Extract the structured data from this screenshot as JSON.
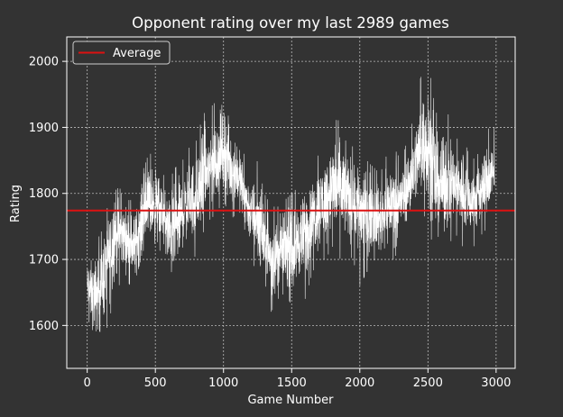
{
  "chart_data": {
    "type": "line",
    "title": "Opponent rating over my last 2989 games",
    "xlabel": "Game Number",
    "ylabel": "Rating",
    "xlim": [
      -150,
      3140
    ],
    "ylim": [
      1535,
      2037
    ],
    "xticks": [
      0,
      500,
      1000,
      1500,
      2000,
      2500,
      3000
    ],
    "yticks": [
      1600,
      1700,
      1800,
      1900,
      2000
    ],
    "grid": true,
    "legend": {
      "placement": "top-left",
      "entries": [
        "Average"
      ]
    },
    "colors": {
      "background": "#333333",
      "axes": "#ffffff",
      "series": "#ffffff",
      "average": "#dd1111",
      "grid": "#bbbbbb"
    },
    "series": [
      {
        "name": "Rating",
        "x_range": [
          0,
          2988
        ],
        "envelope": {
          "x": [
            0,
            50,
            100,
            150,
            200,
            250,
            300,
            350,
            400,
            450,
            500,
            550,
            600,
            650,
            700,
            750,
            800,
            850,
            900,
            950,
            1000,
            1050,
            1100,
            1150,
            1200,
            1250,
            1300,
            1350,
            1400,
            1450,
            1500,
            1550,
            1600,
            1650,
            1700,
            1750,
            1800,
            1850,
            1900,
            1950,
            2000,
            2050,
            2100,
            2150,
            2200,
            2250,
            2300,
            2350,
            2400,
            2450,
            2500,
            2550,
            2600,
            2650,
            2700,
            2750,
            2800,
            2850,
            2900,
            2950,
            2988
          ],
          "low": [
            1620,
            1565,
            1570,
            1600,
            1640,
            1670,
            1665,
            1650,
            1680,
            1720,
            1700,
            1720,
            1650,
            1640,
            1700,
            1720,
            1700,
            1740,
            1760,
            1770,
            1790,
            1760,
            1770,
            1750,
            1700,
            1680,
            1660,
            1620,
            1640,
            1650,
            1630,
            1650,
            1640,
            1680,
            1700,
            1700,
            1720,
            1700,
            1710,
            1700,
            1660,
            1680,
            1700,
            1690,
            1700,
            1700,
            1720,
            1740,
            1760,
            1770,
            1760,
            1700,
            1720,
            1720,
            1740,
            1720,
            1720,
            1720,
            1740,
            1750,
            1770
          ],
          "high": [
            1710,
            1720,
            1740,
            1780,
            1840,
            1800,
            1790,
            1790,
            1830,
            1860,
            1860,
            1830,
            1820,
            1840,
            1850,
            1870,
            1880,
            1920,
            1930,
            1940,
            1960,
            1920,
            1900,
            1860,
            1830,
            1850,
            1800,
            1780,
            1780,
            1790,
            1800,
            1810,
            1820,
            1840,
            1860,
            1880,
            1900,
            1920,
            1890,
            1870,
            1880,
            1850,
            1840,
            1830,
            1860,
            1870,
            1850,
            1880,
            1920,
            1980,
            2010,
            1930,
            1900,
            1920,
            1880,
            1890,
            1860,
            1850,
            1880,
            1900,
            1900
          ],
          "mean": [
            1660,
            1640,
            1660,
            1700,
            1740,
            1740,
            1730,
            1720,
            1760,
            1790,
            1780,
            1770,
            1740,
            1750,
            1770,
            1790,
            1790,
            1820,
            1840,
            1850,
            1870,
            1840,
            1830,
            1800,
            1770,
            1760,
            1730,
            1700,
            1710,
            1720,
            1710,
            1730,
            1740,
            1760,
            1780,
            1790,
            1810,
            1810,
            1800,
            1790,
            1780,
            1770,
            1770,
            1760,
            1780,
            1790,
            1790,
            1810,
            1840,
            1870,
            1880,
            1820,
            1810,
            1820,
            1810,
            1810,
            1790,
            1790,
            1810,
            1820,
            1830
          ]
        }
      }
    ],
    "average": {
      "name": "Average",
      "value": 1774
    }
  }
}
